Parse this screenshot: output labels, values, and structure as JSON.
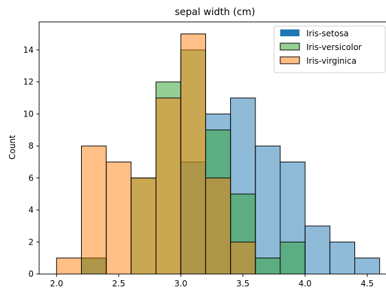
{
  "chart_data": {
    "type": "bar",
    "title": "sepal width (cm)",
    "xlabel": "",
    "ylabel": "Count",
    "xlim": [
      1.86,
      4.69
    ],
    "ylim": [
      0,
      15.75
    ],
    "xticks": [
      2.0,
      2.5,
      3.0,
      3.5,
      4.0,
      4.5
    ],
    "xtick_labels": [
      "2.0",
      "2.5",
      "3.0",
      "3.5",
      "4.0",
      "4.5"
    ],
    "yticks": [
      0,
      2,
      4,
      6,
      8,
      10,
      12,
      14
    ],
    "ytick_labels": [
      "0",
      "2",
      "4",
      "6",
      "8",
      "10",
      "12",
      "14"
    ],
    "bin_edges": [
      2.0,
      2.2,
      2.4,
      2.6,
      2.8,
      3.0,
      3.2,
      3.4,
      3.6,
      3.8,
      4.0,
      4.2,
      4.4,
      4.6
    ],
    "grid": false,
    "legend_position": "top-right",
    "series": [
      {
        "name": "Iris-setosa",
        "color": "#1f77b4",
        "values": [
          0,
          1,
          0,
          0,
          0,
          7,
          10,
          11,
          8,
          7,
          3,
          2,
          1
        ]
      },
      {
        "name": "Iris-versicolor",
        "color": "#2ca02c",
        "values": [
          0,
          1,
          0,
          6,
          12,
          14,
          9,
          5,
          1,
          2,
          0,
          0,
          0
        ]
      },
      {
        "name": "Iris-virginica",
        "color": "#ff7f0e",
        "values": [
          1,
          8,
          7,
          6,
          11,
          15,
          6,
          2,
          0,
          0,
          0,
          0,
          0
        ]
      }
    ]
  }
}
